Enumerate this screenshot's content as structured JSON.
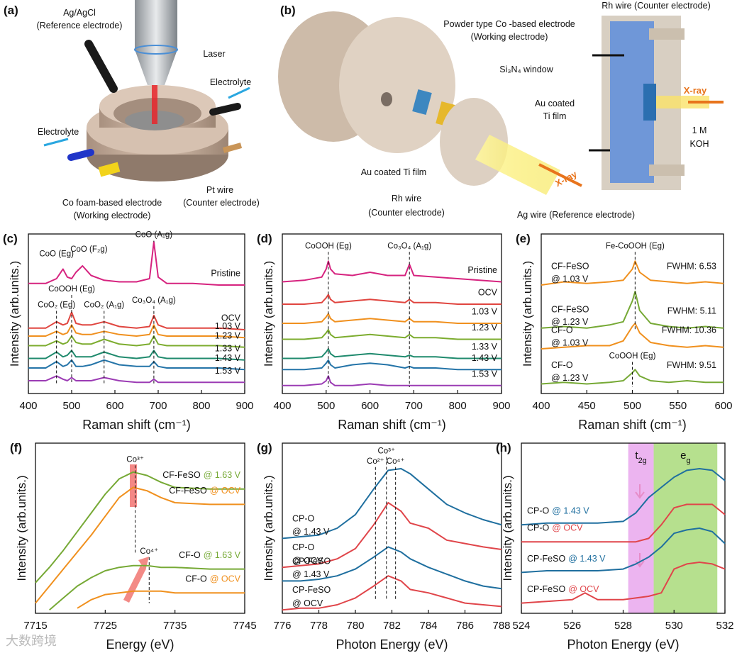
{
  "diagrams": {
    "a": {
      "panel": "(a)",
      "labels": [
        "Ag/AgCl",
        "(Reference electrode)",
        "Laser",
        "Electrolyte",
        "Electrolyte",
        "Co foam-based electrode",
        "(Working electrode)",
        "Pt wire",
        "(Counter electrode)"
      ]
    },
    "b": {
      "panel": "(b)",
      "labels": [
        "Rh wire (Counter electrode)",
        "Powder type Co -based electrode",
        "(Working electrode)",
        "Si₃N₄ window",
        "X-ray",
        "Au coated",
        "Ti film",
        "1 M",
        "KOH",
        "Au coated Ti film",
        "Rh wire",
        "(Counter electrode)",
        "X-ray",
        "Ag wire (Reference electrode)"
      ]
    },
    "watermark": "大数跨境"
  },
  "chart_data": [
    {
      "type": "line",
      "panel": "(c)",
      "xlabel": "Raman shift (cm⁻¹)",
      "ylabel": "Intensity (arb.units.)",
      "xlim": [
        400,
        900
      ],
      "xticks": [
        400,
        500,
        600,
        700,
        800,
        900
      ],
      "ylim": [
        0,
        10
      ],
      "label_side": "right",
      "label_stack": false,
      "x": [
        400,
        440,
        465,
        480,
        490,
        500,
        510,
        525,
        545,
        575,
        610,
        650,
        680,
        690,
        700,
        720,
        780,
        840,
        900
      ],
      "series": [
        {
          "name": "Pristine",
          "color": "#d6237f",
          "values": [
            6.9,
            6.9,
            7.2,
            7.8,
            7.3,
            7.2,
            7.6,
            8.0,
            7.4,
            7.1,
            7.0,
            7.0,
            7.2,
            9.5,
            7.3,
            6.9,
            6.9,
            6.8,
            6.8
          ]
        },
        {
          "name": "OCV",
          "color": "#e0453f",
          "values": [
            4.1,
            4.1,
            4.5,
            4.3,
            4.4,
            5.1,
            4.4,
            4.3,
            4.3,
            4.5,
            4.2,
            4.1,
            4.2,
            4.9,
            4.3,
            4.1,
            4.1,
            4.1,
            4.0
          ]
        },
        {
          "name": "1.03 V",
          "color": "#f0901e",
          "values": [
            3.6,
            3.6,
            3.9,
            3.7,
            3.8,
            4.3,
            3.8,
            3.7,
            3.7,
            3.9,
            3.7,
            3.6,
            3.7,
            4.3,
            3.7,
            3.6,
            3.6,
            3.6,
            3.5
          ]
        },
        {
          "name": "1.23 V",
          "color": "#7cac2e",
          "values": [
            3.0,
            3.0,
            3.3,
            3.1,
            3.2,
            3.6,
            3.2,
            3.1,
            3.1,
            3.4,
            3.1,
            3.0,
            3.1,
            3.6,
            3.1,
            3.0,
            3.0,
            3.0,
            2.9
          ]
        },
        {
          "name": "1.33 V",
          "color": "#1f8a6d",
          "values": [
            2.2,
            2.2,
            2.6,
            2.3,
            2.4,
            2.7,
            2.3,
            2.3,
            2.3,
            2.6,
            2.3,
            2.2,
            2.3,
            2.7,
            2.3,
            2.2,
            2.2,
            2.2,
            2.1
          ]
        },
        {
          "name": "1.43 V",
          "color": "#2474a8",
          "values": [
            1.6,
            1.6,
            2.0,
            1.7,
            1.8,
            2.1,
            1.7,
            1.7,
            1.8,
            2.1,
            1.8,
            1.7,
            1.7,
            2.0,
            1.7,
            1.6,
            1.6,
            1.6,
            1.5
          ]
        },
        {
          "name": "1.53 V",
          "color": "#9b3bb4",
          "values": [
            0.8,
            0.8,
            1.1,
            0.9,
            0.8,
            1.0,
            0.8,
            0.8,
            0.8,
            1.0,
            0.8,
            0.7,
            0.7,
            0.9,
            0.7,
            0.7,
            0.7,
            0.7,
            0.7
          ]
        }
      ],
      "annotations": [
        {
          "label": "CoO (Eg)",
          "x": 465,
          "y": 8.6
        },
        {
          "label": "CoO (F₂g)",
          "x": 540,
          "y": 8.9
        },
        {
          "label": "CoO (A₁g)",
          "x": 690,
          "y": 9.8,
          "y_end": 9.5
        },
        {
          "label": "CoOOH (Eg)",
          "x": 500,
          "y": 6.4,
          "y_end": 0.6
        },
        {
          "label": "CoO₂ (Eg)",
          "x": 465,
          "y": 5.4,
          "y_end": 0.6
        },
        {
          "label": "CoO₂ (A₁g)",
          "x": 575,
          "y": 5.4,
          "y_end": 0.6
        },
        {
          "label": "Co₃O₄ (A₁g)",
          "x": 690,
          "y": 5.7,
          "y_end": 0.6
        }
      ]
    },
    {
      "type": "line",
      "panel": "(d)",
      "xlabel": "Raman shift (cm⁻¹)",
      "ylabel": "Intensity (arb.units.)",
      "xlim": [
        400,
        900
      ],
      "xticks": [
        400,
        500,
        600,
        700,
        800,
        900
      ],
      "ylim": [
        0,
        10
      ],
      "label_side": "right",
      "label_stack": false,
      "x": [
        400,
        450,
        490,
        500,
        505,
        510,
        520,
        560,
        600,
        640,
        680,
        690,
        700,
        750,
        800,
        850,
        900
      ],
      "series": [
        {
          "name": "Pristine",
          "color": "#d6237f",
          "values": [
            7.0,
            7.1,
            7.3,
            7.8,
            8.3,
            7.8,
            7.5,
            7.4,
            7.6,
            7.4,
            7.4,
            8.1,
            7.4,
            7.3,
            7.2,
            7.1,
            7.0
          ]
        },
        {
          "name": "OCV",
          "color": "#e0453f",
          "values": [
            5.6,
            5.6,
            5.7,
            6.0,
            6.2,
            5.9,
            5.7,
            5.8,
            5.9,
            5.8,
            5.7,
            5.9,
            5.7,
            5.7,
            5.6,
            5.6,
            5.6
          ]
        },
        {
          "name": "1.03 V",
          "color": "#f0901e",
          "values": [
            4.4,
            4.4,
            4.5,
            4.8,
            5.0,
            4.7,
            4.5,
            4.6,
            4.7,
            4.6,
            4.5,
            4.7,
            4.5,
            4.5,
            4.4,
            4.4,
            4.4
          ]
        },
        {
          "name": "1.23 V",
          "color": "#7cac2e",
          "values": [
            3.4,
            3.4,
            3.5,
            3.8,
            4.0,
            3.7,
            3.5,
            3.6,
            3.7,
            3.6,
            3.5,
            3.7,
            3.5,
            3.5,
            3.4,
            3.4,
            3.4
          ]
        },
        {
          "name": "1.33 V",
          "color": "#1f8a6d",
          "values": [
            2.2,
            2.2,
            2.3,
            2.6,
            2.8,
            2.5,
            2.3,
            2.4,
            2.5,
            2.4,
            2.3,
            2.4,
            2.3,
            2.3,
            2.2,
            2.2,
            2.2
          ]
        },
        {
          "name": "1.43 V",
          "color": "#2474a8",
          "values": [
            1.5,
            1.5,
            1.6,
            1.9,
            2.1,
            1.8,
            1.6,
            1.8,
            1.9,
            1.8,
            1.6,
            1.7,
            1.6,
            1.6,
            1.5,
            1.5,
            1.5
          ]
        },
        {
          "name": "1.53 V",
          "color": "#9b3bb4",
          "values": [
            0.5,
            0.5,
            0.6,
            0.8,
            1.1,
            0.7,
            0.5,
            0.5,
            0.6,
            0.5,
            0.5,
            0.5,
            0.5,
            0.5,
            0.5,
            0.5,
            0.5
          ]
        }
      ],
      "annotations": [
        {
          "label": "CoOOH (Eg)",
          "x": 505,
          "y": 9.1,
          "y_end": 0.4
        },
        {
          "label": "Co₃O₄ (A₁g)",
          "x": 690,
          "y": 9.1,
          "y_end": 0.4
        }
      ]
    },
    {
      "type": "line",
      "panel": "(e)",
      "xlabel": "Raman shift (cm⁻¹)",
      "ylabel": "Intensity (arb.units.)",
      "xlim": [
        400,
        600
      ],
      "xticks": [
        400,
        450,
        500,
        550,
        600
      ],
      "ylim": [
        0,
        10
      ],
      "label_side": "left",
      "label_stack": true,
      "note_color": "#1d8fd6",
      "x": [
        400,
        425,
        450,
        475,
        490,
        500,
        503,
        508,
        520,
        540,
        560,
        580,
        600
      ],
      "series": [
        {
          "name": "CF-FeSO",
          "condition": "@ 1.03 V",
          "note": "FWHM: 6.53",
          "color": "#f0901e",
          "values": [
            6.8,
            7.0,
            6.9,
            7.0,
            7.1,
            7.8,
            8.3,
            7.6,
            7.1,
            7.0,
            6.9,
            7.0,
            6.9
          ]
        },
        {
          "name": "CF-FeSO",
          "condition": "@ 1.23 V",
          "note": "FWHM: 5.11",
          "color": "#76a935",
          "values": [
            4.1,
            4.2,
            4.1,
            4.3,
            4.5,
            5.8,
            6.4,
            5.2,
            4.4,
            4.2,
            4.1,
            4.2,
            4.1
          ]
        },
        {
          "name": "CF-O",
          "condition": "@ 1.03 V",
          "note": "FWHM: 10.36",
          "color": "#f0901e",
          "values": [
            2.8,
            2.9,
            3.0,
            3.0,
            3.3,
            4.2,
            4.4,
            3.8,
            3.2,
            3.0,
            2.9,
            3.0,
            2.9
          ]
        },
        {
          "name": "CF-O",
          "condition": "@ 1.23 V",
          "note": "FWHM: 9.51",
          "color": "#76a935",
          "values": [
            0.6,
            0.7,
            0.6,
            0.7,
            0.8,
            1.3,
            1.5,
            1.1,
            0.8,
            0.7,
            0.8,
            0.7,
            0.7
          ]
        }
      ],
      "annotations": [
        {
          "label": "Fe-CoOOH (Eg)",
          "x": 503,
          "y": 9.1,
          "y_end": 4.0
        },
        {
          "label": "CoOOH (Eg)",
          "x": 500,
          "y": 2.2,
          "y_end": 0.4
        }
      ]
    },
    {
      "type": "line",
      "panel": "(f)",
      "xlabel": "Energy (eV)",
      "ylabel": "Intensity (arb.units.)",
      "xlim": [
        7715,
        7745
      ],
      "xticks": [
        7715,
        7725,
        7735,
        7745
      ],
      "ylim": [
        0,
        10
      ],
      "label_side": "right",
      "label_stack": false,
      "x": [
        7715,
        7717,
        7719,
        7721,
        7723,
        7725,
        7727,
        7729,
        7731,
        7733,
        7735,
        7740,
        7745
      ],
      "series": [
        {
          "name": "CF-FeSO",
          "condition": "@ 1.63 V",
          "color": "#76a935",
          "values": [
            1.8,
            2.7,
            3.7,
            4.8,
            5.9,
            7.0,
            7.9,
            8.3,
            8.1,
            7.7,
            7.4,
            7.3,
            7.3
          ]
        },
        {
          "name": "CF-FeSO",
          "condition": "@ OCV",
          "color": "#f0901e",
          "values": [
            0.6,
            1.6,
            2.6,
            3.6,
            4.6,
            5.7,
            6.8,
            7.4,
            7.2,
            6.8,
            6.5,
            6.4,
            6.4
          ]
        },
        {
          "name": "CF-O",
          "condition": "@ 1.63 V",
          "color": "#76a935",
          "values": [
            null,
            0.2,
            0.9,
            1.6,
            2.1,
            2.5,
            2.7,
            2.8,
            2.8,
            2.7,
            2.7,
            2.6,
            2.6
          ]
        },
        {
          "name": "CF-O",
          "condition": "@ OCV",
          "color": "#f0901e",
          "values": [
            null,
            null,
            null,
            0.3,
            0.8,
            1.1,
            1.2,
            1.3,
            1.3,
            1.3,
            1.2,
            1.2,
            1.2
          ]
        }
      ],
      "annotations": [
        {
          "label": "Co³⁺",
          "x": 7729.3,
          "y": 8.9,
          "y_end": 3.5
        },
        {
          "label": "Co⁴⁺",
          "x": 7731.3,
          "y": 3.5,
          "y_end": 0.6
        }
      ]
    },
    {
      "type": "line",
      "panel": "(g)",
      "xlabel": "Photon Energy (eV)",
      "ylabel": "Intensity (arb.units.)",
      "xlim": [
        776,
        788
      ],
      "xticks": [
        776,
        778,
        780,
        782,
        784,
        786,
        788
      ],
      "ylim": [
        0,
        10
      ],
      "label_side": "left",
      "label_stack": true,
      "x": [
        776,
        777,
        778,
        779,
        780,
        781,
        781.8,
        782.5,
        783,
        784,
        785,
        786,
        787,
        788
      ],
      "series": [
        {
          "name": "CP-O",
          "condition": "@ 1.43 V",
          "color": "#1f6f9f",
          "values": [
            4.4,
            4.5,
            4.6,
            5.0,
            5.8,
            7.3,
            8.4,
            8.5,
            8.2,
            7.3,
            6.4,
            5.9,
            5.5,
            5.2
          ]
        },
        {
          "name": "CP-O",
          "condition": "@ OCV",
          "color": "#e0454a",
          "values": [
            2.7,
            2.8,
            2.9,
            3.2,
            3.8,
            5.2,
            6.5,
            6.0,
            5.3,
            5.0,
            4.3,
            4.1,
            3.9,
            3.75
          ]
        },
        {
          "name": "CP-FeSO",
          "condition": "@ 1.43 V",
          "color": "#1f6f9f",
          "values": [
            1.9,
            1.9,
            2.0,
            2.2,
            2.6,
            3.3,
            3.9,
            3.6,
            3.2,
            2.7,
            2.3,
            1.9,
            1.6,
            1.45
          ]
        },
        {
          "name": "CP-FeSO",
          "condition": "@ OCV",
          "color": "#e0454a",
          "values": [
            0.2,
            0.3,
            0.3,
            0.5,
            0.9,
            1.6,
            2.2,
            1.9,
            1.4,
            1.2,
            0.9,
            0.6,
            0.5,
            0.4
          ]
        }
      ],
      "annotations": [
        {
          "label": "Co²⁺",
          "x": 781.1,
          "y": 8.8,
          "y_end": 0.8
        },
        {
          "label": "Co³⁺",
          "x": 781.7,
          "y": 9.4,
          "y_end": 0.8
        },
        {
          "label": "Co⁴⁺",
          "x": 782.2,
          "y": 8.8,
          "y_end": 0.8
        }
      ]
    },
    {
      "type": "line",
      "panel": "(h)",
      "xlabel": "Photon Energy (eV)",
      "ylabel": "Intensity (arb.units.)",
      "xlim": [
        524,
        532
      ],
      "xticks": [
        524,
        526,
        528,
        530,
        532
      ],
      "ylim": [
        0,
        10
      ],
      "label_side": "left",
      "label_stack": false,
      "bands": [
        {
          "main": "t",
          "sub": "2g",
          "from": 528.2,
          "to": 529.2,
          "color": "#e7a1ec"
        },
        {
          "main": "e",
          "sub": "g",
          "from": 529.2,
          "to": 531.7,
          "color": "#a4d872"
        }
      ],
      "x": [
        524,
        525,
        526,
        526.5,
        527,
        528,
        528.5,
        529,
        529.5,
        530,
        530.5,
        531,
        531.5,
        532
      ],
      "series": [
        {
          "name": "CP-O",
          "condition": "@ 1.43 V",
          "color": "#1f6f9f",
          "values": [
            5.2,
            5.3,
            5.3,
            5.3,
            5.3,
            5.4,
            5.9,
            6.8,
            7.4,
            8.0,
            8.4,
            8.5,
            8.4,
            7.8
          ]
        },
        {
          "name": "CP-O",
          "condition": "@ OCV",
          "color": "#e0454a",
          "values": [
            4.2,
            4.2,
            4.2,
            4.2,
            4.2,
            4.2,
            4.2,
            4.4,
            5.2,
            6.2,
            6.4,
            6.4,
            6.4,
            5.8
          ]
        },
        {
          "name": "CP-FeSO",
          "condition": "@ 1.43 V",
          "color": "#1f6f9f",
          "values": [
            2.4,
            2.5,
            2.5,
            2.5,
            2.5,
            2.6,
            2.9,
            3.3,
            3.9,
            4.7,
            4.9,
            5.0,
            4.8,
            4.1
          ]
        },
        {
          "name": "CP-FeSO",
          "condition": "@ OCV",
          "color": "#e0454a",
          "values": [
            0.6,
            0.7,
            0.8,
            1.2,
            0.8,
            0.8,
            0.9,
            1.0,
            1.2,
            2.6,
            2.9,
            3.0,
            2.9,
            2.6
          ]
        }
      ],
      "annotations": []
    }
  ]
}
